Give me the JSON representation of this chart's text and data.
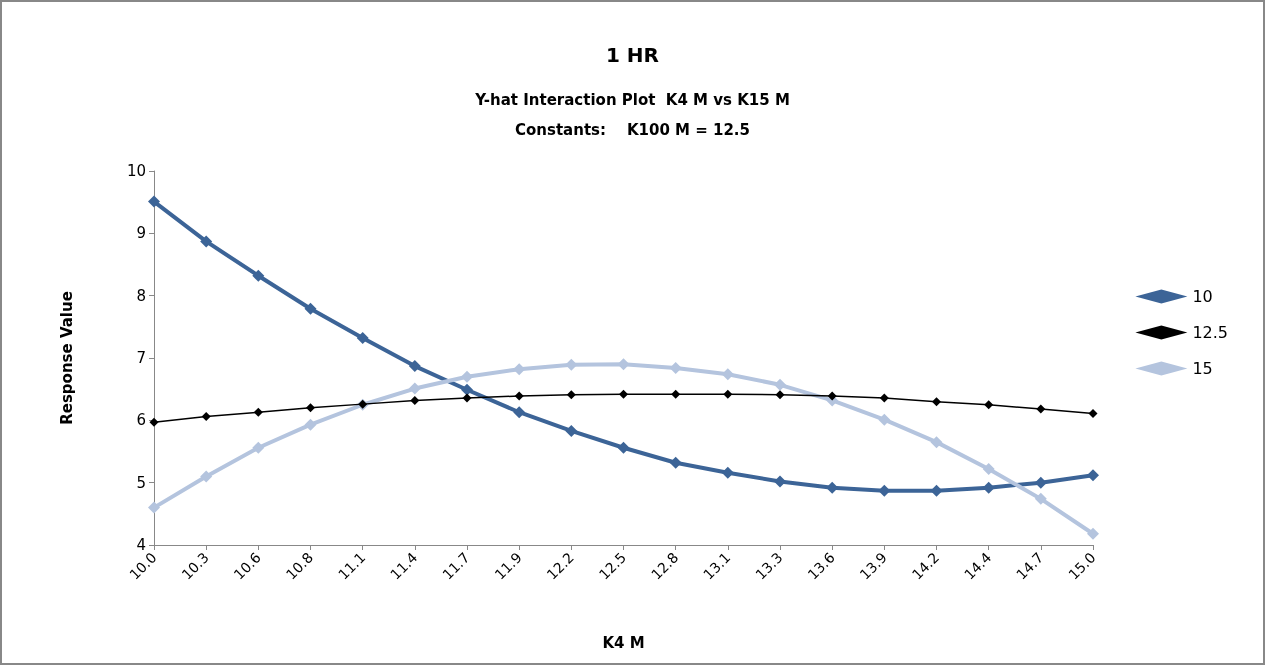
{
  "chart_data": {
    "type": "line",
    "title": "1 HR",
    "subtitle": "Y-hat Interaction Plot  K4 M vs K15 M\nConstants:    K100 M = 12.5",
    "xlabel": "K4 M",
    "ylabel": "Response Value",
    "categories": [
      "10.0",
      "10.3",
      "10.6",
      "10.8",
      "11.1",
      "11.4",
      "11.7",
      "11.9",
      "12.2",
      "12.5",
      "12.8",
      "13.1",
      "13.3",
      "13.6",
      "13.9",
      "14.2",
      "14.4",
      "14.7",
      "15.0"
    ],
    "series": [
      {
        "name": "10",
        "color": "#3c6497",
        "values": [
          9.51,
          8.87,
          8.32,
          7.79,
          7.32,
          6.87,
          6.49,
          6.13,
          5.83,
          5.56,
          5.32,
          5.16,
          5.02,
          4.92,
          4.87,
          4.87,
          4.92,
          5.0,
          5.12
        ]
      },
      {
        "name": "12.5",
        "color": "#000000",
        "values": [
          5.97,
          6.06,
          6.13,
          6.2,
          6.26,
          6.32,
          6.36,
          6.39,
          6.41,
          6.42,
          6.42,
          6.42,
          6.41,
          6.39,
          6.36,
          6.3,
          6.25,
          6.18,
          6.11
        ]
      },
      {
        "name": "15",
        "color": "#b4c4de",
        "values": [
          4.6,
          5.1,
          5.56,
          5.93,
          6.25,
          6.51,
          6.7,
          6.82,
          6.89,
          6.9,
          6.84,
          6.74,
          6.57,
          6.32,
          6.01,
          5.65,
          5.22,
          4.74,
          4.18
        ]
      }
    ],
    "ylim": [
      4,
      10
    ],
    "yticks": [
      4,
      5,
      6,
      7,
      8,
      9,
      10
    ],
    "grid": false,
    "legend": "right",
    "marker": "diamond",
    "line_style": "solid"
  }
}
